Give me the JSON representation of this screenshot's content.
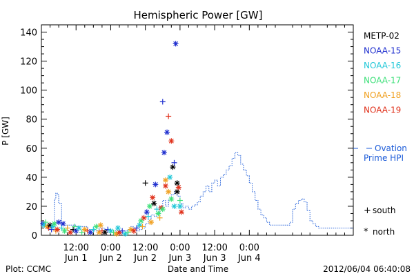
{
  "chart_data": {
    "type": "scatter",
    "title": "Hemispheric Power [GW]",
    "xlabel": "Date and Time",
    "ylabel": "P [GW]",
    "ylim": [
      0,
      145
    ],
    "xlim_hours": [
      0,
      108
    ],
    "y_ticks": [
      0,
      20,
      40,
      60,
      80,
      100,
      120,
      140
    ],
    "x_ticks": [
      {
        "h": 12,
        "time": "12:00",
        "date": "Jun 1"
      },
      {
        "h": 24,
        "time": "0:00",
        "date": "Jun 2"
      },
      {
        "h": 36,
        "time": "12:00",
        "date": "Jun 2"
      },
      {
        "h": 48,
        "time": "0:00",
        "date": "Jun 3"
      },
      {
        "h": 60,
        "time": "12:00",
        "date": "Jun 3"
      },
      {
        "h": 72,
        "time": "0:00",
        "date": "Jun 4"
      }
    ],
    "legend_placement": "right",
    "series": [
      {
        "name": "METP-02",
        "color": "#000000"
      },
      {
        "name": "NOAA-15",
        "color": "#1f2fcf"
      },
      {
        "name": "NOAA-16",
        "color": "#22c8d8"
      },
      {
        "name": "NOAA-17",
        "color": "#3ee07a"
      },
      {
        "name": "NOAA-18",
        "color": "#f0a020"
      },
      {
        "name": "NOAA-19",
        "color": "#e0301a"
      }
    ],
    "ovation": {
      "label_line1": "Ovation",
      "label_line2": "Prime HPI",
      "color": "#1a5ad8",
      "x": [
        0,
        4,
        4.5,
        5,
        5.5,
        6,
        7,
        9,
        11,
        12,
        16,
        18,
        20,
        22,
        24,
        26,
        28,
        30,
        31,
        32,
        34,
        35,
        36,
        37,
        38,
        39,
        40,
        41,
        42,
        43,
        44,
        45,
        46,
        47,
        48,
        49,
        50,
        51,
        52,
        53,
        54,
        55,
        56,
        57,
        58,
        59,
        60,
        61,
        62,
        63,
        64,
        65,
        66,
        67,
        68,
        69,
        70,
        71,
        72,
        73,
        74,
        75,
        76,
        77,
        78,
        79,
        80,
        81,
        82,
        83,
        84,
        85,
        86,
        87,
        88,
        89,
        90,
        91,
        92,
        93,
        94,
        95,
        96,
        97,
        98,
        99,
        100,
        101,
        102,
        103,
        104,
        105,
        106,
        107,
        108
      ],
      "y": [
        7,
        7,
        25,
        29,
        28,
        22,
        7,
        7,
        7,
        6,
        4,
        3,
        5,
        4,
        3,
        2,
        3,
        4,
        6,
        3,
        4,
        5,
        8,
        11,
        14,
        13,
        15,
        20,
        24,
        20,
        25,
        28,
        30,
        27,
        22,
        19,
        20,
        18,
        20,
        21,
        23,
        27,
        30,
        34,
        30,
        36,
        38,
        34,
        40,
        42,
        45,
        48,
        53,
        57,
        55,
        49,
        45,
        41,
        36,
        30,
        24,
        18,
        14,
        12,
        9,
        7,
        7,
        7,
        7,
        7,
        7,
        7,
        9,
        18,
        22,
        24,
        25,
        23,
        17,
        10,
        8,
        6,
        5,
        5,
        5,
        5,
        5,
        5,
        5,
        5,
        5,
        5,
        5,
        5,
        5
      ]
    },
    "marker_legend": [
      {
        "symbol": "+",
        "label": "south"
      },
      {
        "symbol": "*",
        "label": "north"
      }
    ],
    "points": [
      {
        "s": 1,
        "h": 0.5,
        "y": 8,
        "m": "*"
      },
      {
        "s": 2,
        "h": 1,
        "y": 7,
        "m": "*"
      },
      {
        "s": 3,
        "h": 1.5,
        "y": 9,
        "m": "+"
      },
      {
        "s": 4,
        "h": 2,
        "y": 6,
        "m": "*"
      },
      {
        "s": 5,
        "h": 2.5,
        "y": 5,
        "m": "+"
      },
      {
        "s": 0,
        "h": 3,
        "y": 7,
        "m": "*"
      },
      {
        "s": 1,
        "h": 3.5,
        "y": 4,
        "m": "+"
      },
      {
        "s": 2,
        "h": 4,
        "y": 6,
        "m": "*"
      },
      {
        "s": 3,
        "h": 4.5,
        "y": 8,
        "m": "*"
      },
      {
        "s": 4,
        "h": 5,
        "y": 3,
        "m": "+"
      },
      {
        "s": 5,
        "h": 5.5,
        "y": 4,
        "m": "*"
      },
      {
        "s": 1,
        "h": 6,
        "y": 9,
        "m": "*"
      },
      {
        "s": 2,
        "h": 7,
        "y": 5,
        "m": "+"
      },
      {
        "s": 3,
        "h": 8,
        "y": 3,
        "m": "*"
      },
      {
        "s": 4,
        "h": 9,
        "y": 5,
        "m": "+"
      },
      {
        "s": 5,
        "h": 10,
        "y": 2,
        "m": "*"
      },
      {
        "s": 0,
        "h": 11,
        "y": 4,
        "m": "+"
      },
      {
        "s": 1,
        "h": 12,
        "y": 3,
        "m": "*"
      },
      {
        "s": 2,
        "h": 13,
        "y": 5,
        "m": "*"
      },
      {
        "s": 3,
        "h": 14,
        "y": 2,
        "m": "+"
      },
      {
        "s": 4,
        "h": 15,
        "y": 4,
        "m": "*"
      },
      {
        "s": 5,
        "h": 16,
        "y": 3,
        "m": "+"
      },
      {
        "s": 1,
        "h": 17,
        "y": 2,
        "m": "*"
      },
      {
        "s": 2,
        "h": 18,
        "y": 4,
        "m": "+"
      },
      {
        "s": 3,
        "h": 19,
        "y": 6,
        "m": "*"
      },
      {
        "s": 4,
        "h": 20,
        "y": 2,
        "m": "*"
      },
      {
        "s": 5,
        "h": 21,
        "y": 3,
        "m": "+"
      },
      {
        "s": 0,
        "h": 22,
        "y": 2,
        "m": "*"
      },
      {
        "s": 1,
        "h": 23,
        "y": 4,
        "m": "+"
      },
      {
        "s": 2,
        "h": 24,
        "y": 3,
        "m": "*"
      },
      {
        "s": 3,
        "h": 25,
        "y": 2,
        "m": "+"
      },
      {
        "s": 4,
        "h": 26,
        "y": 1,
        "m": "*"
      },
      {
        "s": 5,
        "h": 27,
        "y": 2,
        "m": "*"
      },
      {
        "s": 1,
        "h": 28,
        "y": 3,
        "m": "+"
      },
      {
        "s": 2,
        "h": 29,
        "y": 1,
        "m": "*"
      },
      {
        "s": 3,
        "h": 30,
        "y": 2,
        "m": "+"
      },
      {
        "s": 4,
        "h": 31,
        "y": 4,
        "m": "*"
      },
      {
        "s": 5,
        "h": 32,
        "y": 3,
        "m": "*"
      },
      {
        "s": 1,
        "h": 33,
        "y": 5,
        "m": "+"
      },
      {
        "s": 2,
        "h": 34,
        "y": 7,
        "m": "*"
      },
      {
        "s": 3,
        "h": 34.5,
        "y": 10,
        "m": "*"
      },
      {
        "s": 4,
        "h": 35,
        "y": 6,
        "m": "+"
      },
      {
        "s": 5,
        "h": 35.5,
        "y": 12,
        "m": "*"
      },
      {
        "s": 0,
        "h": 36,
        "y": 36,
        "m": "+"
      },
      {
        "s": 1,
        "h": 36.5,
        "y": 16,
        "m": "*"
      },
      {
        "s": 2,
        "h": 37,
        "y": 13,
        "m": "+"
      },
      {
        "s": 3,
        "h": 37.5,
        "y": 20,
        "m": "*"
      },
      {
        "s": 4,
        "h": 38,
        "y": 9,
        "m": "*"
      },
      {
        "s": 5,
        "h": 38.5,
        "y": 26,
        "m": "*"
      },
      {
        "s": 0,
        "h": 39,
        "y": 22,
        "m": "*"
      },
      {
        "s": 1,
        "h": 39.5,
        "y": 35,
        "m": "*"
      },
      {
        "s": 2,
        "h": 40,
        "y": 18,
        "m": "+"
      },
      {
        "s": 3,
        "h": 40.5,
        "y": 15,
        "m": "*"
      },
      {
        "s": 4,
        "h": 41,
        "y": 12,
        "m": "+"
      },
      {
        "s": 5,
        "h": 41.5,
        "y": 19,
        "m": "*"
      },
      {
        "s": 1,
        "h": 42,
        "y": 92,
        "m": "+"
      },
      {
        "s": 1,
        "h": 42.5,
        "y": 57,
        "m": "*"
      },
      {
        "s": 5,
        "h": 43,
        "y": 34,
        "m": "*"
      },
      {
        "s": 1,
        "h": 43.5,
        "y": 71,
        "m": "*"
      },
      {
        "s": 5,
        "h": 44,
        "y": 82,
        "m": "+"
      },
      {
        "s": 2,
        "h": 44.5,
        "y": 40,
        "m": "*"
      },
      {
        "s": 5,
        "h": 45,
        "y": 65,
        "m": "*"
      },
      {
        "s": 0,
        "h": 45.5,
        "y": 47,
        "m": "*"
      },
      {
        "s": 1,
        "h": 46,
        "y": 50,
        "m": "+"
      },
      {
        "s": 1,
        "h": 46.5,
        "y": 132,
        "m": "*"
      },
      {
        "s": 0,
        "h": 47,
        "y": 30,
        "m": "*"
      },
      {
        "s": 4,
        "h": 44,
        "y": 30,
        "m": "*"
      },
      {
        "s": 3,
        "h": 45,
        "y": 25,
        "m": "*"
      },
      {
        "s": 2,
        "h": 46,
        "y": 20,
        "m": "*"
      },
      {
        "s": 5,
        "h": 47.5,
        "y": 33,
        "m": "*"
      },
      {
        "s": 0,
        "h": 47,
        "y": 36,
        "m": "*"
      },
      {
        "s": 3,
        "h": 48,
        "y": 24,
        "m": "+"
      },
      {
        "s": 5,
        "h": 48.5,
        "y": 16,
        "m": "*"
      },
      {
        "s": 2,
        "h": 48,
        "y": 20,
        "m": "*"
      },
      {
        "s": 4,
        "h": 43,
        "y": 38,
        "m": "*"
      },
      {
        "s": 3,
        "h": 42,
        "y": 18,
        "m": "*"
      },
      {
        "s": 1,
        "h": 7.5,
        "y": 8,
        "m": "*"
      },
      {
        "s": 3,
        "h": 11.5,
        "y": 6,
        "m": "+"
      },
      {
        "s": 4,
        "h": 20.5,
        "y": 7,
        "m": "*"
      },
      {
        "s": 2,
        "h": 26.5,
        "y": 5,
        "m": "*"
      }
    ]
  },
  "footer": {
    "left": "Plot: CCMC",
    "right": "2012/06/04 06:40:08"
  }
}
